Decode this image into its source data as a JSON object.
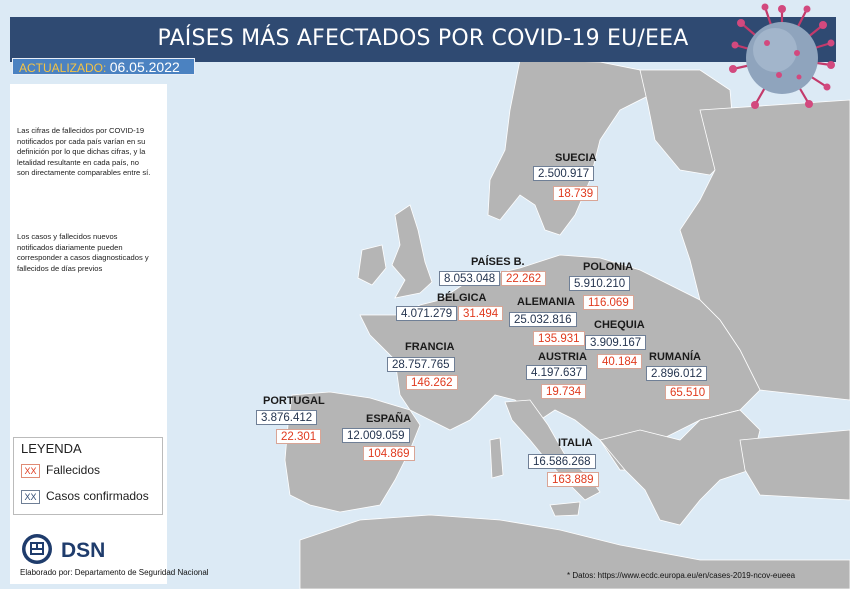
{
  "header": {
    "title": "PAÍSES MÁS AFECTADOS POR COVID-19 EU/EEA"
  },
  "updated": {
    "label": "ACTUALIZADO:",
    "date": "06.05.2022"
  },
  "notes": [
    "Las cifras de fallecidos por COVID-19 notificados por cada país varían en su definición por lo que dichas cifras, y la letalidad resultante en cada país, no son directamente comparables entre sí.",
    "Los casos y fallecidos nuevos notificados diariamente pueden corresponder a casos diagnosticados y fallecidos de días previos"
  ],
  "legend": {
    "title": "LEYENDA",
    "items": [
      {
        "marker": "XX",
        "label": "Fallecidos",
        "color": "#e03a1e"
      },
      {
        "marker": "XX",
        "label": "Casos confirmados",
        "color": "#2f4a72"
      }
    ]
  },
  "countries": [
    {
      "name": "SUECIA",
      "cases": "2.500.917",
      "deaths": "18.739"
    },
    {
      "name": "PAÍSES B.",
      "cases": "8.053.048",
      "deaths": "22.262"
    },
    {
      "name": "POLONIA",
      "cases": "5.910.210",
      "deaths": "116.069"
    },
    {
      "name": "BÉLGICA",
      "cases": "4.071.279",
      "deaths": "31.494"
    },
    {
      "name": "ALEMANIA",
      "cases": "25.032.816",
      "deaths": "135.931"
    },
    {
      "name": "CHEQUIA",
      "cases": "3.909.167",
      "deaths": "40.184"
    },
    {
      "name": "FRANCIA",
      "cases": "28.757.765",
      "deaths": "146.262"
    },
    {
      "name": "AUSTRIA",
      "cases": "4.197.637",
      "deaths": "19.734"
    },
    {
      "name": "RUMANÍA",
      "cases": "2.896.012",
      "deaths": "65.510"
    },
    {
      "name": "PORTUGAL",
      "cases": "3.876.412",
      "deaths": "22.301"
    },
    {
      "name": "ESPAÑA",
      "cases": "12.009.059",
      "deaths": "104.869"
    },
    {
      "name": "ITALIA",
      "cases": "16.586.268",
      "deaths": "163.889"
    }
  ],
  "logo": {
    "text": "DSN"
  },
  "footer": {
    "credit": "Elaborado por: Departamento de Seguridad Nacional",
    "source": "* Datos: https://www.ecdc.europa.eu/en/cases-2019-ncov-eueea"
  },
  "colors": {
    "sea": "#dceaf5",
    "land": "#b5b5b5",
    "header": "#2f4a72",
    "deaths": "#e03a1e",
    "cases": "#24344f"
  },
  "icons": {
    "virus": "coronavirus-icon",
    "logo": "dsn-emblem-icon"
  }
}
